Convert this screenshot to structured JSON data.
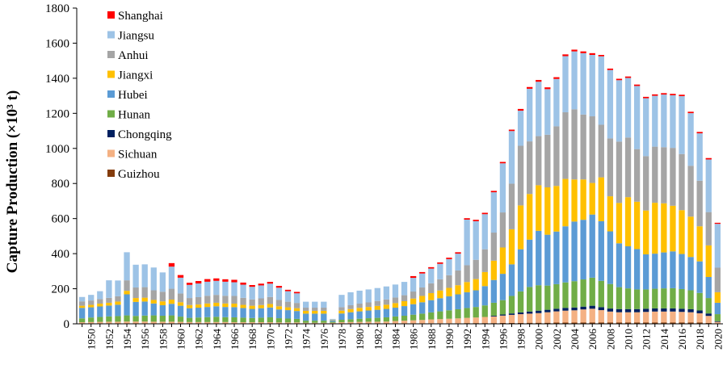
{
  "chart_data": {
    "type": "bar",
    "stacked": true,
    "title": "",
    "ylabel": "Capture Production (×10³ t)",
    "xlabel": "",
    "ylim": [
      0,
      1800
    ],
    "yticks": [
      "0",
      "200",
      "400",
      "600",
      "800",
      "1000",
      "1200",
      "1400",
      "1600",
      "1800"
    ],
    "x_tick_labels": [
      "1950",
      "1952",
      "1954",
      "1956",
      "1958",
      "1960",
      "1962",
      "1964",
      "1966",
      "1968",
      "1970",
      "1972",
      "1974",
      "1976",
      "1978",
      "1980",
      "1982",
      "1984",
      "1986",
      "1988",
      "1990",
      "1992",
      "1994",
      "1996",
      "1998",
      "2000",
      "2002",
      "2004",
      "2006",
      "2008",
      "2010",
      "2012",
      "2014",
      "2016",
      "2018",
      "2020"
    ],
    "legend_position": "top-left",
    "grid": false,
    "categories": [
      1949,
      1950,
      1951,
      1952,
      1953,
      1954,
      1955,
      1956,
      1957,
      1958,
      1959,
      1960,
      1961,
      1962,
      1963,
      1964,
      1965,
      1966,
      1967,
      1968,
      1969,
      1970,
      1971,
      1972,
      1973,
      1974,
      1975,
      1976,
      1977,
      1978,
      1979,
      1980,
      1981,
      1982,
      1983,
      1984,
      1985,
      1986,
      1987,
      1988,
      1989,
      1990,
      1991,
      1992,
      1993,
      1994,
      1995,
      1996,
      1997,
      1998,
      1999,
      2000,
      2001,
      2002,
      2003,
      2004,
      2005,
      2006,
      2007,
      2008,
      2009,
      2010,
      2011,
      2012,
      2013,
      2014,
      2015,
      2016,
      2017,
      2018,
      2019,
      2020
    ],
    "series": [
      {
        "name": "Guizhou",
        "color": "#843c0c",
        "values": [
          1,
          1,
          1,
          1,
          1,
          1,
          1,
          1,
          1,
          1,
          1,
          1,
          1,
          1,
          1,
          1,
          1,
          1,
          1,
          1,
          1,
          1,
          1,
          1,
          1,
          0,
          0,
          0,
          0,
          1,
          1,
          1,
          1,
          1,
          1,
          2,
          2,
          2,
          2,
          3,
          3,
          3,
          3,
          4,
          4,
          4,
          4,
          5,
          5,
          5,
          6,
          6,
          6,
          7,
          7,
          7,
          8,
          8,
          8,
          8,
          8,
          8,
          8,
          8,
          8,
          8,
          8,
          8,
          8,
          8,
          5,
          3
        ]
      },
      {
        "name": "Sichuan",
        "color": "#f4b183",
        "values": [
          8,
          9,
          10,
          11,
          11,
          12,
          12,
          12,
          11,
          11,
          11,
          10,
          9,
          9,
          9,
          9,
          9,
          8,
          8,
          8,
          8,
          8,
          7,
          7,
          7,
          6,
          6,
          6,
          6,
          8,
          9,
          10,
          11,
          11,
          12,
          14,
          16,
          18,
          20,
          22,
          24,
          26,
          28,
          30,
          32,
          35,
          38,
          42,
          46,
          50,
          52,
          55,
          60,
          64,
          68,
          70,
          74,
          78,
          70,
          62,
          58,
          58,
          58,
          60,
          62,
          62,
          62,
          60,
          58,
          52,
          40,
          8
        ]
      },
      {
        "name": "Chongqing",
        "color": "#002060",
        "values": [
          0,
          0,
          0,
          0,
          0,
          0,
          0,
          0,
          0,
          0,
          0,
          0,
          0,
          0,
          0,
          0,
          0,
          0,
          0,
          0,
          0,
          0,
          0,
          0,
          0,
          0,
          0,
          0,
          0,
          0,
          0,
          0,
          0,
          0,
          0,
          0,
          0,
          0,
          0,
          0,
          0,
          0,
          0,
          0,
          0,
          0,
          4,
          6,
          8,
          10,
          12,
          14,
          14,
          15,
          16,
          16,
          16,
          17,
          17,
          17,
          18,
          18,
          18,
          18,
          18,
          18,
          18,
          18,
          17,
          16,
          14,
          4
        ]
      },
      {
        "name": "Hunan",
        "color": "#70ad47",
        "values": [
          22,
          26,
          28,
          30,
          32,
          35,
          32,
          34,
          36,
          34,
          36,
          30,
          24,
          26,
          28,
          30,
          28,
          28,
          26,
          24,
          26,
          28,
          24,
          22,
          20,
          12,
          12,
          12,
          6,
          14,
          16,
          18,
          20,
          22,
          24,
          26,
          28,
          32,
          36,
          40,
          44,
          48,
          52,
          56,
          60,
          66,
          74,
          82,
          100,
          120,
          140,
          145,
          138,
          140,
          145,
          150,
          155,
          160,
          150,
          140,
          125,
          118,
          112,
          110,
          112,
          114,
          115,
          112,
          108,
          100,
          88,
          40
        ]
      },
      {
        "name": "Hubei",
        "color": "#5b9bd5",
        "values": [
          60,
          58,
          60,
          62,
          65,
          120,
          80,
          80,
          68,
          60,
          66,
          62,
          55,
          56,
          58,
          60,
          58,
          58,
          55,
          52,
          54,
          56,
          50,
          48,
          45,
          40,
          40,
          40,
          8,
          36,
          40,
          42,
          44,
          46,
          48,
          50,
          55,
          60,
          65,
          70,
          75,
          80,
          85,
          90,
          95,
          110,
          130,
          150,
          180,
          240,
          270,
          310,
          290,
          300,
          320,
          340,
          340,
          360,
          340,
          300,
          250,
          240,
          230,
          200,
          200,
          205,
          210,
          200,
          190,
          180,
          120,
          65
        ]
      },
      {
        "name": "Jiangxi",
        "color": "#ffc000",
        "values": [
          12,
          14,
          16,
          16,
          18,
          20,
          22,
          22,
          20,
          22,
          24,
          20,
          18,
          18,
          20,
          20,
          20,
          20,
          18,
          18,
          18,
          20,
          18,
          16,
          16,
          16,
          16,
          16,
          2,
          16,
          18,
          20,
          20,
          22,
          24,
          26,
          28,
          32,
          36,
          40,
          44,
          48,
          52,
          58,
          64,
          80,
          110,
          150,
          200,
          250,
          260,
          260,
          270,
          260,
          270,
          240,
          230,
          180,
          250,
          200,
          230,
          280,
          270,
          250,
          290,
          280,
          260,
          250,
          230,
          200,
          180,
          60
        ]
      },
      {
        "name": "Anhui",
        "color": "#a5a5a5",
        "values": [
          25,
          25,
          26,
          28,
          30,
          60,
          60,
          60,
          55,
          55,
          62,
          50,
          40,
          42,
          44,
          45,
          44,
          44,
          40,
          36,
          38,
          40,
          36,
          32,
          30,
          18,
          18,
          18,
          2,
          20,
          22,
          24,
          26,
          28,
          30,
          32,
          34,
          40,
          48,
          56,
          64,
          72,
          84,
          96,
          110,
          130,
          160,
          200,
          260,
          340,
          300,
          280,
          300,
          340,
          380,
          400,
          370,
          380,
          300,
          330,
          350,
          340,
          300,
          310,
          320,
          320,
          330,
          320,
          290,
          260,
          190,
          140
        ]
      },
      {
        "name": "Jiangsu",
        "color": "#9dc3e6",
        "values": [
          25,
          32,
          45,
          100,
          90,
          160,
          130,
          130,
          130,
          110,
          126,
          90,
          75,
          78,
          80,
          80,
          80,
          78,
          75,
          72,
          74,
          76,
          70,
          60,
          55,
          34,
          34,
          34,
          4,
          70,
          74,
          74,
          74,
          74,
          74,
          74,
          76,
          78,
          80,
          84,
          88,
          92,
          96,
          260,
          220,
          200,
          230,
          280,
          300,
          200,
          300,
          310,
          260,
          270,
          320,
          330,
          350,
          350,
          390,
          390,
          350,
          340,
          360,
          330,
          290,
          300,
          300,
          330,
          300,
          270,
          300,
          250
        ]
      },
      {
        "name": "Shanghai",
        "color": "#ff0000",
        "values": [
          0,
          0,
          0,
          0,
          0,
          0,
          0,
          0,
          0,
          0,
          20,
          15,
          12,
          14,
          15,
          14,
          14,
          14,
          12,
          10,
          10,
          10,
          10,
          8,
          8,
          0,
          0,
          0,
          0,
          0,
          0,
          0,
          0,
          0,
          0,
          0,
          0,
          10,
          8,
          8,
          8,
          8,
          8,
          8,
          8,
          8,
          8,
          8,
          8,
          10,
          10,
          10,
          10,
          10,
          10,
          10,
          10,
          10,
          8,
          8,
          8,
          8,
          8,
          8,
          8,
          8,
          8,
          8,
          8,
          8,
          8,
          6
        ]
      }
    ]
  }
}
